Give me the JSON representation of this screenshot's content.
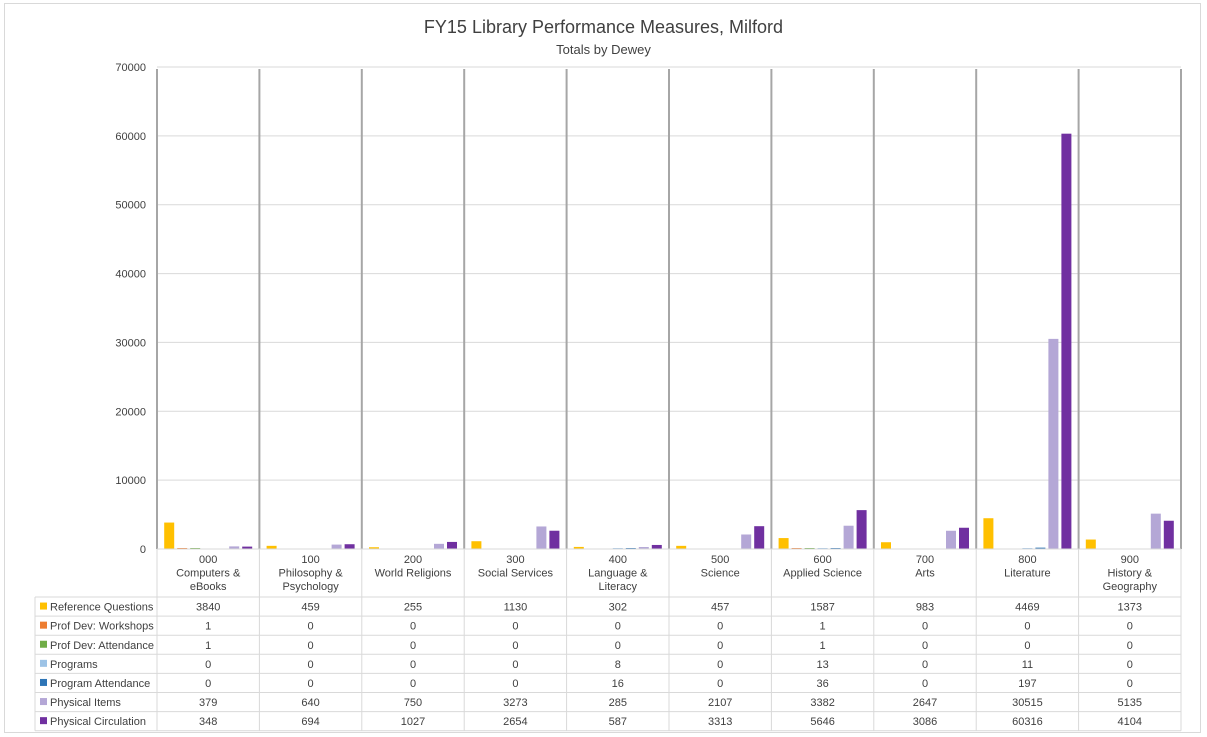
{
  "chart_data": {
    "type": "bar",
    "title": "FY15 Library Performance Measures, Milford",
    "subtitle": "Totals by Dewey",
    "ylim": [
      0,
      70000
    ],
    "yticks": [
      0,
      10000,
      20000,
      30000,
      40000,
      50000,
      60000,
      70000
    ],
    "grid": true,
    "legend_placement": "data-table-left",
    "categories": [
      [
        "000",
        "Computers &",
        "eBooks"
      ],
      [
        "100",
        "Philosophy &",
        "Psychology"
      ],
      [
        "200",
        "World Religions"
      ],
      [
        "300",
        "Social Services"
      ],
      [
        "400",
        "Language &",
        "Literacy"
      ],
      [
        "500",
        "Science"
      ],
      [
        "600",
        "Applied Science"
      ],
      [
        "700",
        "Arts"
      ],
      [
        "800",
        "Literature"
      ],
      [
        "900",
        "History &",
        "Geography"
      ]
    ],
    "series": [
      {
        "name": "Reference Questions",
        "color": "#ffc000",
        "values": [
          3840,
          459,
          255,
          1130,
          302,
          457,
          1587,
          983,
          4469,
          1373
        ]
      },
      {
        "name": "Prof Dev: Workshops",
        "color": "#ed7d31",
        "values": [
          1,
          0,
          0,
          0,
          0,
          0,
          1,
          0,
          0,
          0
        ]
      },
      {
        "name": "Prof Dev: Attendance",
        "color": "#70ad47",
        "values": [
          1,
          0,
          0,
          0,
          0,
          0,
          1,
          0,
          0,
          0
        ]
      },
      {
        "name": "Programs",
        "color": "#9dc3e6",
        "values": [
          0,
          0,
          0,
          0,
          8,
          0,
          13,
          0,
          11,
          0
        ]
      },
      {
        "name": "Program Attendance",
        "color": "#2e75b6",
        "values": [
          0,
          0,
          0,
          0,
          16,
          0,
          36,
          0,
          197,
          0
        ]
      },
      {
        "name": "Physical Items",
        "color": "#b4a7d6",
        "values": [
          379,
          640,
          750,
          3273,
          285,
          2107,
          3382,
          2647,
          30515,
          5135
        ]
      },
      {
        "name": "Physical Circulation",
        "color": "#7030a0",
        "values": [
          348,
          694,
          1027,
          2654,
          587,
          3313,
          5646,
          3086,
          60316,
          4104
        ]
      }
    ]
  }
}
